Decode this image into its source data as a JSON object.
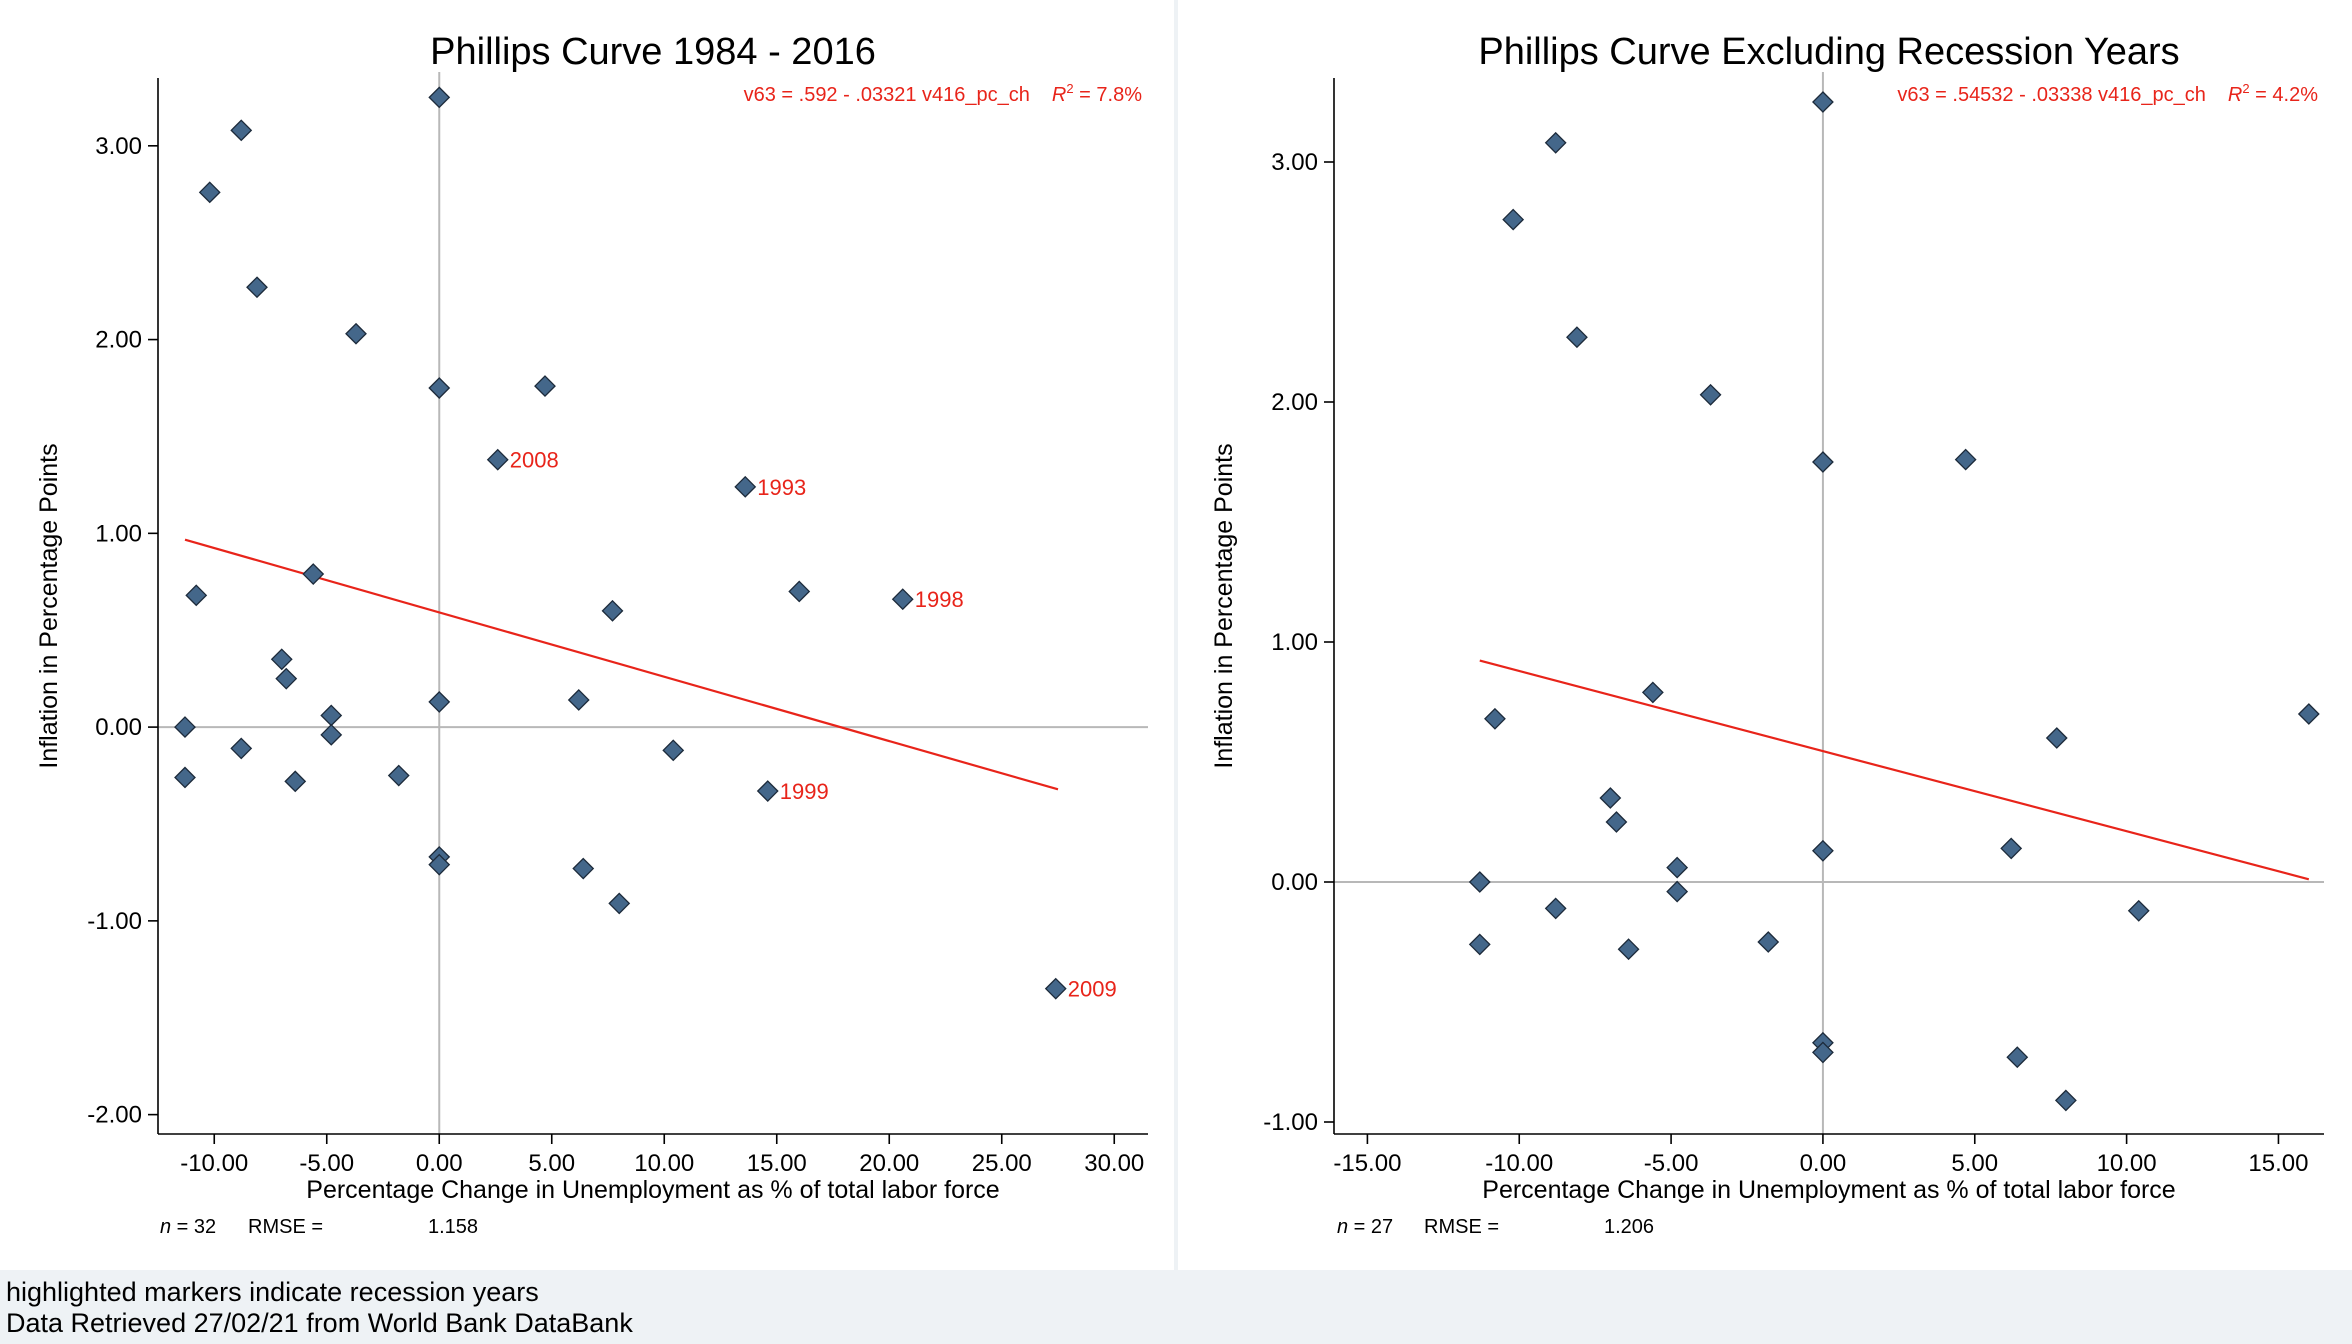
{
  "notes": {
    "line1": "highlighted markers indicate recession years",
    "line2": "Data Retrieved 27/02/21 from World Bank DataBank"
  },
  "colors": {
    "marker_fill": "#44678a",
    "marker_stroke": "#1c2a3a",
    "fit_line": "#e8241a",
    "reference_line": "#b8b8b8",
    "highlight_label": "#e8241a"
  },
  "chart_data": [
    {
      "type": "scatter",
      "title": "Phillips Curve 1984 - 2016",
      "xlabel": "Percentage Change in Unemployment as % of total labor force",
      "ylabel": "Inflation in Percentage Points",
      "xlim": [
        -12.5,
        31.5
      ],
      "ylim": [
        -2.1,
        3.35
      ],
      "xticks": [
        -10,
        -5,
        0,
        5,
        10,
        15,
        20,
        25,
        30
      ],
      "yticks": [
        -2,
        -1,
        0,
        1,
        2,
        3
      ],
      "xtick_labels": [
        "-10.00",
        "-5.00",
        "0.00",
        "5.00",
        "10.00",
        "15.00",
        "20.00",
        "25.00",
        "30.00"
      ],
      "ytick_labels": [
        "-2.00",
        "-1.00",
        "0.00",
        "1.00",
        "2.00",
        "3.00"
      ],
      "equation": "v63 = .592 - .03321 v416_pc_ch",
      "r2_symbol": "R",
      "r2_sup": "2",
      "r2_value": " = 7.8%",
      "n_label": "n",
      "n_value": " = 32",
      "rmse_label": "RMSE =",
      "rmse_value": "1.158",
      "fit_line": {
        "intercept": 0.592,
        "slope": -0.03321,
        "x_range": [
          -11.3,
          27.5
        ]
      },
      "points": [
        {
          "x": 0.0,
          "y": 3.25
        },
        {
          "x": -8.8,
          "y": 3.08
        },
        {
          "x": -10.2,
          "y": 2.76
        },
        {
          "x": -8.1,
          "y": 2.27
        },
        {
          "x": -3.7,
          "y": 2.03
        },
        {
          "x": 0.0,
          "y": 1.75
        },
        {
          "x": 4.7,
          "y": 1.76
        },
        {
          "x": 2.6,
          "y": 1.38,
          "label": "2008"
        },
        {
          "x": 13.6,
          "y": 1.24,
          "label": "1993"
        },
        {
          "x": -5.6,
          "y": 0.79
        },
        {
          "x": -10.8,
          "y": 0.68
        },
        {
          "x": 16.0,
          "y": 0.7
        },
        {
          "x": 20.6,
          "y": 0.66,
          "label": "1998"
        },
        {
          "x": 7.7,
          "y": 0.6
        },
        {
          "x": -7.0,
          "y": 0.35
        },
        {
          "x": -6.8,
          "y": 0.25
        },
        {
          "x": 0.0,
          "y": 0.13
        },
        {
          "x": 6.2,
          "y": 0.14
        },
        {
          "x": -4.8,
          "y": 0.06
        },
        {
          "x": -11.3,
          "y": 0.0
        },
        {
          "x": -4.8,
          "y": -0.04
        },
        {
          "x": -8.8,
          "y": -0.11
        },
        {
          "x": 10.4,
          "y": -0.12
        },
        {
          "x": -11.3,
          "y": -0.26
        },
        {
          "x": -6.4,
          "y": -0.28
        },
        {
          "x": -1.8,
          "y": -0.25
        },
        {
          "x": 14.6,
          "y": -0.33,
          "label": "1999"
        },
        {
          "x": 0.0,
          "y": -0.67
        },
        {
          "x": 0.0,
          "y": -0.71
        },
        {
          "x": 6.4,
          "y": -0.73
        },
        {
          "x": 8.0,
          "y": -0.91
        },
        {
          "x": 27.4,
          "y": -1.35,
          "label": "2009"
        }
      ]
    },
    {
      "type": "scatter",
      "title": "Phillips Curve Excluding Recession Years",
      "xlabel": "Percentage Change in Unemployment as % of total labor force",
      "ylabel": "Inflation in Percentage Points",
      "xlim": [
        -16.1,
        16.5
      ],
      "ylim": [
        -1.05,
        3.35
      ],
      "xticks": [
        -15,
        -10,
        -5,
        0,
        5,
        10,
        15
      ],
      "yticks": [
        -1,
        0,
        1,
        2,
        3
      ],
      "xtick_labels": [
        "-15.00",
        "-10.00",
        "-5.00",
        "0.00",
        "5.00",
        "10.00",
        "15.00"
      ],
      "ytick_labels": [
        "-1.00",
        "0.00",
        "1.00",
        "2.00",
        "3.00"
      ],
      "equation": "v63 = .54532 - .03338 v416_pc_ch",
      "r2_symbol": "R",
      "r2_sup": "2",
      "r2_value": " = 4.2%",
      "n_label": "n",
      "n_value": " = 27",
      "rmse_label": "RMSE =",
      "rmse_value": "1.206",
      "fit_line": {
        "intercept": 0.54532,
        "slope": -0.03338,
        "x_range": [
          -11.3,
          16.0
        ]
      },
      "points": [
        {
          "x": 0.0,
          "y": 3.25
        },
        {
          "x": -8.8,
          "y": 3.08
        },
        {
          "x": -10.2,
          "y": 2.76
        },
        {
          "x": -8.1,
          "y": 2.27
        },
        {
          "x": -3.7,
          "y": 2.03
        },
        {
          "x": 0.0,
          "y": 1.75
        },
        {
          "x": 4.7,
          "y": 1.76
        },
        {
          "x": -5.6,
          "y": 0.79
        },
        {
          "x": -10.8,
          "y": 0.68
        },
        {
          "x": 16.0,
          "y": 0.7
        },
        {
          "x": 7.7,
          "y": 0.6
        },
        {
          "x": -7.0,
          "y": 0.35
        },
        {
          "x": -6.8,
          "y": 0.25
        },
        {
          "x": 0.0,
          "y": 0.13
        },
        {
          "x": 6.2,
          "y": 0.14
        },
        {
          "x": -4.8,
          "y": 0.06
        },
        {
          "x": -11.3,
          "y": 0.0
        },
        {
          "x": -4.8,
          "y": -0.04
        },
        {
          "x": -8.8,
          "y": -0.11
        },
        {
          "x": 10.4,
          "y": -0.12
        },
        {
          "x": -11.3,
          "y": -0.26
        },
        {
          "x": -6.4,
          "y": -0.28
        },
        {
          "x": -1.8,
          "y": -0.25
        },
        {
          "x": 0.0,
          "y": -0.67
        },
        {
          "x": 0.0,
          "y": -0.71
        },
        {
          "x": 6.4,
          "y": -0.73
        },
        {
          "x": 8.0,
          "y": -0.91
        }
      ]
    }
  ]
}
